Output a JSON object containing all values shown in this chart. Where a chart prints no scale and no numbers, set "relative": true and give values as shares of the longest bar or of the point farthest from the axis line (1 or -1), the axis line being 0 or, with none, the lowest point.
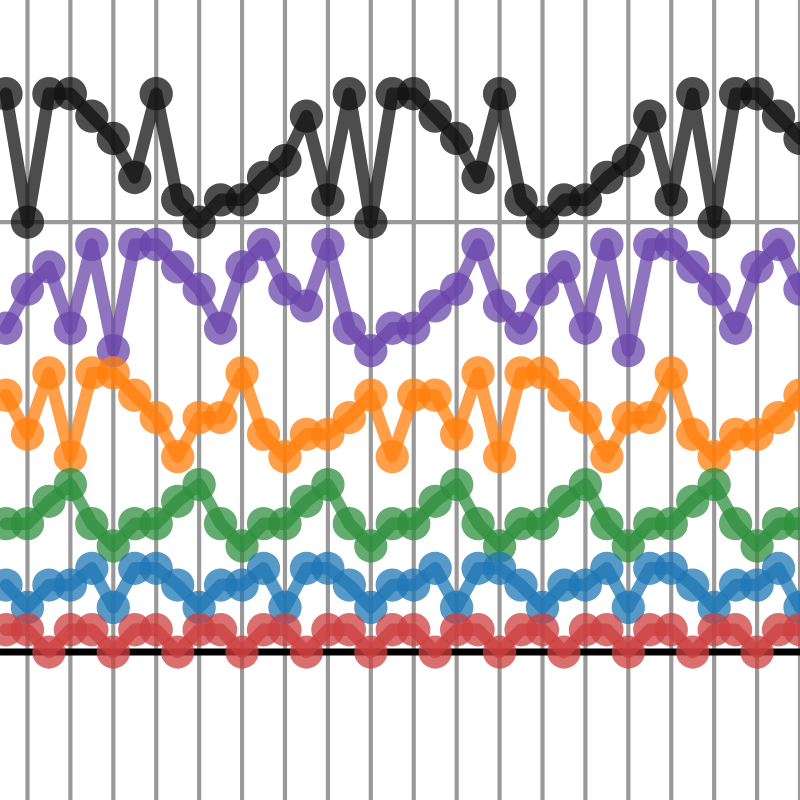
{
  "chart_data": {
    "type": "line",
    "relative": true,
    "marker": "circle",
    "line_style": "solid",
    "grid": "x",
    "categories": [
      null,
      null,
      null,
      null,
      null,
      null,
      null,
      null,
      null,
      null,
      null,
      null,
      null,
      null,
      null,
      null,
      null,
      null,
      null,
      null,
      null,
      null,
      null,
      null,
      null,
      null,
      null,
      null,
      null,
      null,
      null,
      null,
      null,
      null,
      null,
      null,
      null,
      null
    ],
    "series": [
      {
        "color": "#111111",
        "values": [
          1.0,
          0.77,
          1.0,
          1.0,
          0.96,
          0.92,
          0.85,
          1.0,
          0.81,
          0.77,
          0.81,
          0.81,
          0.85,
          0.88,
          0.96,
          0.81,
          1.0,
          0.77,
          1.0,
          1.0,
          0.96,
          0.92,
          0.85,
          1.0,
          0.81,
          0.77,
          0.81,
          0.81,
          0.85,
          0.88,
          0.96,
          0.81,
          1.0,
          0.77,
          1.0,
          1.0,
          0.96,
          0.92
        ]
      },
      {
        "color": "#6a46ab",
        "values": [
          0.58,
          0.65,
          0.69,
          0.58,
          0.73,
          0.54,
          0.73,
          0.73,
          0.69,
          0.65,
          0.58,
          0.69,
          0.73,
          0.65,
          0.62,
          0.73,
          0.58,
          0.54,
          0.58,
          0.58,
          0.62,
          0.65,
          0.73,
          0.62,
          0.58,
          0.65,
          0.69,
          0.58,
          0.73,
          0.54,
          0.73,
          0.73,
          0.69,
          0.65,
          0.58,
          0.69,
          0.73,
          0.65
        ]
      },
      {
        "color": "#ff7f0e",
        "values": [
          0.46,
          0.39,
          0.5,
          0.35,
          0.5,
          0.5,
          0.46,
          0.42,
          0.35,
          0.42,
          0.42,
          0.5,
          0.39,
          0.35,
          0.39,
          0.39,
          0.42,
          0.46,
          0.35,
          0.46,
          0.46,
          0.39,
          0.5,
          0.35,
          0.5,
          0.5,
          0.46,
          0.42,
          0.35,
          0.42,
          0.42,
          0.5,
          0.39,
          0.35,
          0.39,
          0.39,
          0.42,
          0.46
        ]
      },
      {
        "color": "#2f8f3e",
        "values": [
          0.23,
          0.23,
          0.27,
          0.3,
          0.23,
          0.19,
          0.23,
          0.23,
          0.27,
          0.3,
          0.23,
          0.19,
          0.23,
          0.23,
          0.27,
          0.3,
          0.23,
          0.19,
          0.23,
          0.23,
          0.27,
          0.3,
          0.23,
          0.19,
          0.23,
          0.23,
          0.27,
          0.3,
          0.23,
          0.19,
          0.23,
          0.23,
          0.27,
          0.3,
          0.23,
          0.19,
          0.23,
          0.23
        ]
      },
      {
        "color": "#1f77b4",
        "values": [
          0.12,
          0.08,
          0.12,
          0.12,
          0.15,
          0.08,
          0.15,
          0.15,
          0.12,
          0.08,
          0.12,
          0.12,
          0.15,
          0.08,
          0.15,
          0.15,
          0.12,
          0.08,
          0.12,
          0.12,
          0.15,
          0.08,
          0.15,
          0.15,
          0.12,
          0.08,
          0.12,
          0.12,
          0.15,
          0.08,
          0.15,
          0.15,
          0.12,
          0.08,
          0.12,
          0.12,
          0.15,
          0.08
        ]
      },
      {
        "color": "#cc3f3f",
        "values": [
          0.04,
          0.04,
          0.0,
          0.04,
          0.04,
          0.0,
          0.04,
          0.04,
          0.0,
          0.04,
          0.04,
          0.0,
          0.04,
          0.04,
          0.0,
          0.04,
          0.04,
          0.0,
          0.04,
          0.04,
          0.0,
          0.04,
          0.04,
          0.0,
          0.04,
          0.04,
          0.0,
          0.04,
          0.04,
          0.0,
          0.04,
          0.04,
          0.0,
          0.04,
          0.04,
          0.0,
          0.04,
          0.04
        ]
      }
    ],
    "ref_lines": [
      {
        "axis": "y",
        "value": 0,
        "color": "#000000"
      },
      {
        "axis": "y",
        "value": 0.77,
        "color": "#999999"
      }
    ]
  }
}
